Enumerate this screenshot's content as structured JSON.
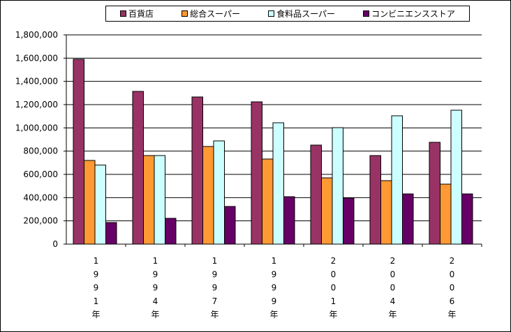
{
  "chart_data": {
    "type": "bar",
    "title": "",
    "xlabel": "",
    "ylabel": "",
    "categories": [
      "1991年",
      "1994年",
      "1997年",
      "1999年",
      "2001年",
      "2004年",
      "2006年"
    ],
    "ylim": [
      0,
      1800000
    ],
    "yticks": [
      "0",
      "200,000",
      "400,000",
      "600,000",
      "800,000",
      "1,000,000",
      "1,200,000",
      "1,400,000",
      "1,600,000",
      "1,800,000"
    ],
    "grid": true,
    "legend_position": "top",
    "series": [
      {
        "name": "百貨店",
        "color": "#993366",
        "values": [
          1590000,
          1314000,
          1266000,
          1224000,
          852000,
          762000,
          876000
        ]
      },
      {
        "name": "総合スーパー",
        "color": "#FF9933",
        "values": [
          720000,
          762000,
          840000,
          732000,
          570000,
          546000,
          516000
        ]
      },
      {
        "name": "食料品スーパー",
        "color": "#CCFFFF",
        "values": [
          680000,
          762000,
          888000,
          1044000,
          1002000,
          1104000,
          1152000
        ]
      },
      {
        "name": "コンビニエンスストア",
        "color": "#660066",
        "values": [
          186000,
          222000,
          324000,
          408000,
          396000,
          432000,
          432000
        ]
      }
    ]
  }
}
